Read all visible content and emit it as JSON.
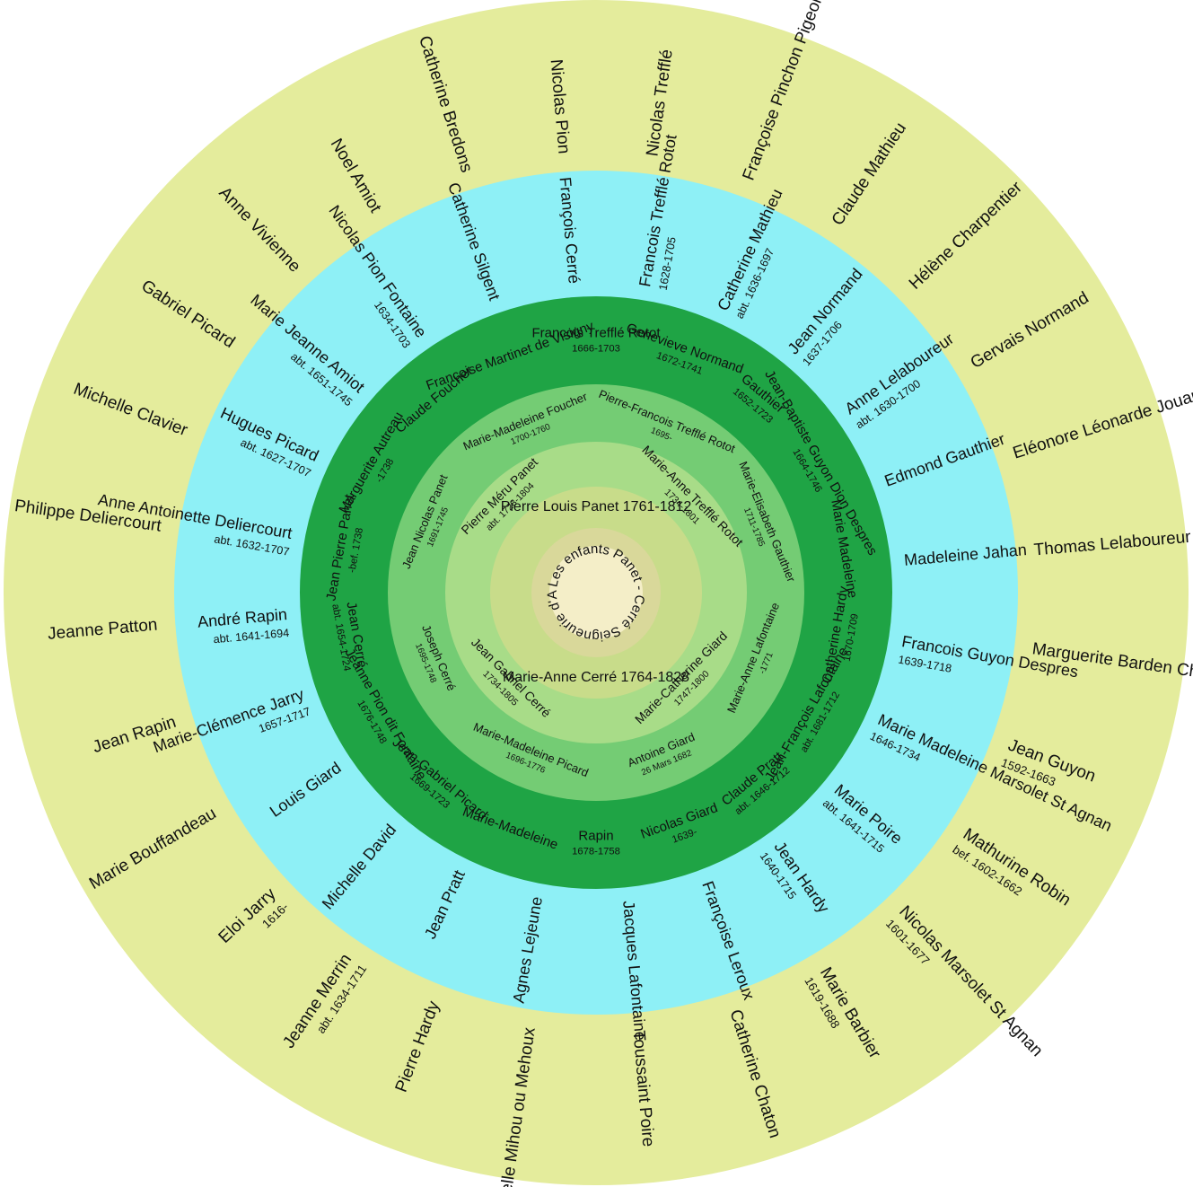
{
  "center": {
    "title": "Les enfants Panet - Cerré Seigneurie d'Ailleboust"
  },
  "colors": {
    "background": "#ffffff",
    "ring_center": "#f4eec8",
    "ring_center_inner": "#d9d89a",
    "ring_children": "#c8dc8a",
    "ring_parents": "#a8dc88",
    "ring_grandparents": "#74cc74",
    "ring_great_grandparents": "#1fa445",
    "ring_g4": "#8ef0f6",
    "ring_g5": "#e4ec9c",
    "divider": "#ffffff"
  },
  "children": [
    {
      "name": "Pierre Louis Panet 1761-1812"
    },
    {
      "name": "Marie-Anne Cerré 1764-1828"
    }
  ],
  "parents": [
    {
      "name": "Pierre Méru Panet",
      "dates": "abt. 1728-1804"
    },
    {
      "name": "Marie-Anne Trefflé Rotot",
      "dates": "1734-1801"
    },
    {
      "name": "Marie-Catherine Giard",
      "dates": "1747-1800"
    },
    {
      "name": "Jean Gabriel Cerré",
      "dates": "1734-1805"
    }
  ],
  "grandparents": [
    {
      "name": "Jean Nicolas Panet",
      "dates": "1691-1745"
    },
    {
      "name": "Marie-Madeleine Foucher",
      "dates": "1700-1760"
    },
    {
      "name": "Pierre-Francois Trefflé Rotot",
      "dates": "1695-"
    },
    {
      "name": "Marie-Elisabeth Gauthier",
      "dates": "1711-1785"
    },
    {
      "name": "Marie-Anne Lafontaine",
      "dates": "-1771"
    },
    {
      "name": "Antoine Giard",
      "dates": "26 Mars 1682"
    },
    {
      "name": "Marie-Madeleine Picard",
      "dates": "1696-1776"
    },
    {
      "name": "Joseph Cerré",
      "dates": "1695-1748"
    }
  ],
  "great_grandparents": [
    {
      "name": "Jean Pierre Panet",
      "dates": "-bef. 1738"
    },
    {
      "name": "Marguerite Autreau",
      "dates": "-1738"
    },
    {
      "name": "Claude Foucher",
      "dates": ""
    },
    {
      "name": "Françoise Martinet de Visigny",
      "dates": ""
    },
    {
      "name": "Francois Trefflé Rotot",
      "dates": "1666-1703"
    },
    {
      "name": "Genevieve Normand",
      "dates": "1672-1741"
    },
    {
      "name": "Gauthier",
      "dates": "1652-1723"
    },
    {
      "name": "Jean-Baptiste Guyon Dion Despres",
      "dates": "1664-1746"
    },
    {
      "name": "Marie Madeleine",
      "dates": ""
    },
    {
      "name": "Catherine Hardy",
      "dates": "1670-1709"
    },
    {
      "name": "Jean-François Lafontaine",
      "dates": "abt. 1681-1712"
    },
    {
      "name": "Claude Pratt",
      "dates": "abt. 1646-1712"
    },
    {
      "name": "Nicolas Giard",
      "dates": "1639-"
    },
    {
      "name": "Rapin",
      "dates": "1678-1758"
    },
    {
      "name": "Marie-Madeleine",
      "dates": ""
    },
    {
      "name": "Jean-Gabriel Picard",
      "dates": "1669-1723"
    },
    {
      "name": "Jeanne Pion dit Fontaine",
      "dates": "1676-1748"
    },
    {
      "name": "Jean Cerré",
      "dates": "abt. 1654-1724"
    }
  ],
  "generation5": [
    {
      "name": "Francois Trefflé Rotot",
      "dates": "1628-1705"
    },
    {
      "name": "Catherine Mathieu",
      "dates": "abt. 1636-1697"
    },
    {
      "name": "Jean Normand",
      "dates": "1637-1706"
    },
    {
      "name": "Anne Lelaboureur",
      "dates": "abt. 1630-1700"
    },
    {
      "name": "Edmond Gauthier",
      "dates": ""
    },
    {
      "name": "Madeleine Jahan",
      "dates": ""
    },
    {
      "name": "Francois Guyon Despres",
      "dates": "1639-1718"
    },
    {
      "name": "Marie Madeleine Marsolet St Agnan",
      "dates": "1646-1734"
    },
    {
      "name": "Marie Poire",
      "dates": "abt. 1641-1715"
    },
    {
      "name": "Jean Hardy",
      "dates": "1640-1715"
    },
    {
      "name": "Françoise Leroux",
      "dates": ""
    },
    {
      "name": "Jacques Lafontaine",
      "dates": ""
    },
    {
      "name": "Agnes Lejeune",
      "dates": ""
    },
    {
      "name": "Jean Pratt",
      "dates": ""
    },
    {
      "name": "Michelle David",
      "dates": ""
    },
    {
      "name": "Louis Giard",
      "dates": ""
    },
    {
      "name": "Marie-Clémence Jarry",
      "dates": "1657-1717"
    },
    {
      "name": "André Rapin",
      "dates": "abt. 1641-1694"
    },
    {
      "name": "Anne Antoinette Deliercourt",
      "dates": "abt. 1632-1707"
    },
    {
      "name": "Hugues Picard",
      "dates": "abt. 1627-1707"
    },
    {
      "name": "Marie Jeanne Amiot",
      "dates": "abt. 1651-1745"
    },
    {
      "name": "Nicolas Pion Fontaine",
      "dates": "1634-1703"
    },
    {
      "name": "Catherine Silgent",
      "dates": ""
    },
    {
      "name": "François Cerré",
      "dates": ""
    }
  ],
  "generation6": [
    {
      "name": "Nicolas Trefflé",
      "dates": ""
    },
    {
      "name": "Françoise Pinchon Pigeon",
      "dates": ""
    },
    {
      "name": "Claude Mathieu",
      "dates": ""
    },
    {
      "name": "Hélène Charpentier",
      "dates": ""
    },
    {
      "name": "Gervais Normand",
      "dates": ""
    },
    {
      "name": "Eléonore Léonarde Jouault ou Jouineau",
      "dates": ""
    },
    {
      "name": "Thomas Lelaboureur",
      "dates": ""
    },
    {
      "name": "Marguerite Barden Chardon",
      "dates": ""
    },
    {
      "name": "Jean Guyon",
      "dates": "1592-1663"
    },
    {
      "name": "Mathurine Robin",
      "dates": "bef. 1602-1662"
    },
    {
      "name": "Nicolas Marsolet St Agnan",
      "dates": "1601-1677"
    },
    {
      "name": "Marie Barbier",
      "dates": "1619-1688"
    },
    {
      "name": "Catherine Chaton",
      "dates": ""
    },
    {
      "name": "Toussaint Poire",
      "dates": ""
    },
    {
      "name": "Isabelle Mihou ou Mehoux",
      "dates": ""
    },
    {
      "name": "Pierre Hardy",
      "dates": ""
    },
    {
      "name": "Jeanne Merrin",
      "dates": "abt. 1634-1711"
    },
    {
      "name": "Eloi Jarry",
      "dates": "1616-"
    },
    {
      "name": "Marie Bouffandeau",
      "dates": ""
    },
    {
      "name": "Jean Rapin",
      "dates": ""
    },
    {
      "name": "Jeanne Patton",
      "dates": ""
    },
    {
      "name": "Philippe Deliercourt",
      "dates": ""
    },
    {
      "name": "Michelle Clavier",
      "dates": ""
    },
    {
      "name": "Gabriel Picard",
      "dates": ""
    },
    {
      "name": "Anne Vivienne",
      "dates": ""
    },
    {
      "name": "Noel Amiot",
      "dates": ""
    },
    {
      "name": "Catherine Bredons",
      "dates": ""
    },
    {
      "name": "Nicolas Pion",
      "dates": ""
    }
  ]
}
